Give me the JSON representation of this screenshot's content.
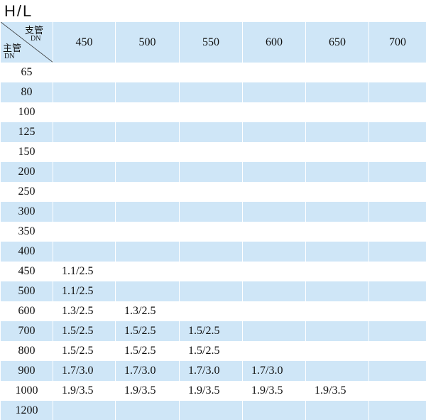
{
  "title": "H/L",
  "table": {
    "corner": {
      "branch": "支管",
      "branch_unit": "DN",
      "main": "主管",
      "main_unit": "DN"
    },
    "columns": [
      "450",
      "500",
      "550",
      "600",
      "650",
      "700"
    ],
    "rows": [
      [
        "65"
      ],
      [
        "80"
      ],
      [
        "100"
      ],
      [
        "125"
      ],
      [
        "150"
      ],
      [
        "200"
      ],
      [
        "250"
      ],
      [
        "300"
      ],
      [
        "350"
      ],
      [
        "400"
      ],
      [
        "450",
        "1.1/2.5"
      ],
      [
        "500",
        "1.1/2.5"
      ],
      [
        "600",
        "1.3/2.5",
        "1.3/2.5"
      ],
      [
        "700",
        "1.5/2.5",
        "1.5/2.5",
        "1.5/2.5"
      ],
      [
        "800",
        "1.5/2.5",
        "1.5/2.5",
        "1.5/2.5"
      ],
      [
        "900",
        "1.7/3.0",
        "1.7/3.0",
        "1.7/3.0",
        "1.7/3.0"
      ],
      [
        "1000",
        "1.9/3.5",
        "1.9/3.5",
        "1.9/3.5",
        "1.9/3.5",
        "1.9/3.5"
      ],
      [
        "1200"
      ]
    ]
  }
}
